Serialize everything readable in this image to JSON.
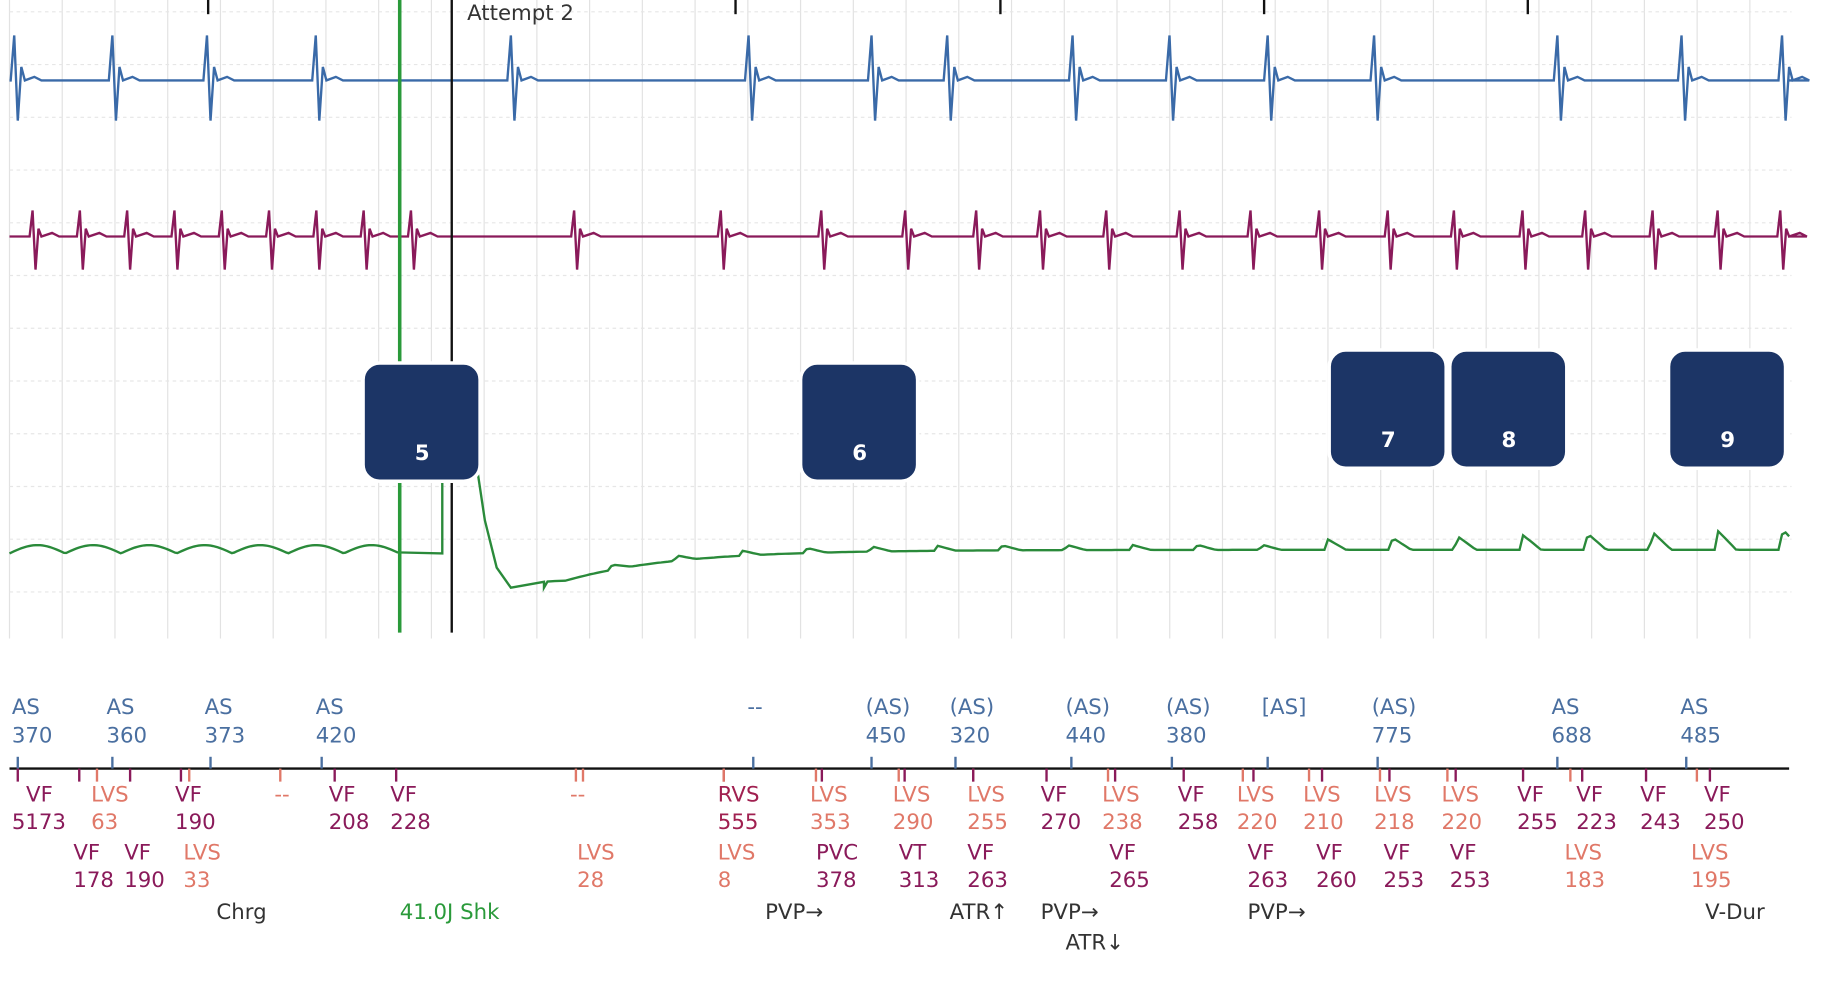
{
  "header": {
    "label": "Attempt 2"
  },
  "badges": [
    5,
    6,
    7,
    8,
    9
  ],
  "atrial": [
    {
      "label": "AS",
      "value": 370
    },
    {
      "label": "AS",
      "value": 360
    },
    {
      "label": "AS",
      "value": 373
    },
    {
      "label": "AS",
      "value": 420
    },
    {
      "label": "--"
    },
    {
      "label": "(AS)",
      "value": 450
    },
    {
      "label": "(AS)",
      "value": 320
    },
    {
      "label": "(AS)",
      "value": 440
    },
    {
      "label": "(AS)",
      "value": 380
    },
    {
      "label": "[AS]"
    },
    {
      "label": "(AS)",
      "value": 775
    },
    {
      "label": "AS",
      "value": 688
    },
    {
      "label": "AS",
      "value": 485
    }
  ],
  "ventricular_1": [
    {
      "label": "VF",
      "value": 5173
    },
    {
      "label": "LVS",
      "value": 63
    },
    {
      "label": "VF",
      "value": 190
    },
    {
      "label": "--"
    },
    {
      "label": "VF",
      "value": 208
    },
    {
      "label": "VF",
      "value": 228
    },
    {
      "label": "--"
    },
    {
      "label": "RVS",
      "value": 555
    },
    {
      "label": "LVS",
      "value": 353
    },
    {
      "label": "LVS",
      "value": 290
    },
    {
      "label": "LVS",
      "value": 255
    },
    {
      "label": "VF",
      "value": 270
    },
    {
      "label": "LVS",
      "value": 238
    },
    {
      "label": "VF",
      "value": 258
    },
    {
      "label": "LVS",
      "value": 220
    },
    {
      "label": "LVS",
      "value": 210
    },
    {
      "label": "LVS",
      "value": 218
    },
    {
      "label": "LVS",
      "value": 220
    },
    {
      "label": "VF",
      "value": 255
    },
    {
      "label": "VF",
      "value": 223
    },
    {
      "label": "VF",
      "value": 243
    },
    {
      "label": "VF",
      "value": 250
    }
  ],
  "ventricular_2": [
    {
      "label": "VF",
      "value": 178
    },
    {
      "label": "VF",
      "value": 190
    },
    {
      "label": "LVS",
      "value": 33
    },
    {
      "label": "LVS",
      "value": 28
    },
    {
      "label": "LVS",
      "value": 8
    },
    {
      "label": "PVC",
      "value": 378
    },
    {
      "label": "VT",
      "value": 313
    },
    {
      "label": "VF",
      "value": 263
    },
    {
      "label": "VF",
      "value": 265
    },
    {
      "label": "VF",
      "value": 263
    },
    {
      "label": "VF",
      "value": 260
    },
    {
      "label": "VF",
      "value": 253
    },
    {
      "label": "VF",
      "value": 253
    },
    {
      "label": "LVS",
      "value": 183
    },
    {
      "label": "LVS",
      "value": 195
    }
  ],
  "notes": [
    "Chrg",
    "41.0J Shk",
    "PVP→",
    "ATR↑",
    "PVP→",
    "ATR↓",
    "PVP→",
    "V-Dur"
  ]
}
